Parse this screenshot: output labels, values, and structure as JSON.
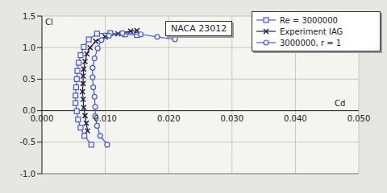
{
  "chart_data": {
    "type": "line",
    "title": "NACA 23012",
    "x_label": "Cd",
    "y_label": "Cl",
    "xlim": [
      0,
      0.05
    ],
    "ylim": [
      -1,
      1.5
    ],
    "xticks": [
      {
        "value": 0,
        "label": "0.000"
      },
      {
        "value": 0.01,
        "label": "0.010"
      },
      {
        "value": 0.02,
        "label": "0.020"
      },
      {
        "value": 0.03,
        "label": "0.030"
      },
      {
        "value": 0.04,
        "label": "0.040"
      },
      {
        "value": 0.05,
        "label": "0.050"
      }
    ],
    "yticks": [
      {
        "value": -1,
        "label": "-1.0"
      },
      -0.5,
      {
        "value": 0,
        "label": "0.0"
      },
      0.5,
      {
        "value": 1,
        "label": "1.0"
      },
      1.5
    ],
    "grid": true,
    "legend": "top-right",
    "series": [
      {
        "name": "Re = 3000000",
        "color": "#4a5ac8",
        "marker": "square",
        "line_style": "solid",
        "x": [
          0.0078,
          0.0067,
          0.0061,
          0.0057,
          0.0055,
          0.0053,
          0.0053,
          0.0054,
          0.0055,
          0.0056,
          0.0058,
          0.0061,
          0.0066,
          0.0074,
          0.0087,
          0.0108,
          0.0131,
          0.015
        ],
        "values": [
          -0.54,
          -0.4,
          -0.27,
          -0.14,
          -0.01,
          0.12,
          0.24,
          0.37,
          0.5,
          0.63,
          0.76,
          0.88,
          1.01,
          1.13,
          1.22,
          1.23,
          1.21,
          1.2
        ]
      },
      {
        "name": "Experiment IAG",
        "color": "#202040",
        "marker": "x",
        "line_style": "solid",
        "x": [
          0.0072,
          0.007,
          0.0068,
          0.0066,
          0.0065,
          0.0064,
          0.0065,
          0.0065,
          0.0066,
          0.0068,
          0.0071,
          0.0076,
          0.0085,
          0.01,
          0.012,
          0.014,
          0.015
        ],
        "values": [
          -0.32,
          -0.2,
          -0.08,
          0.05,
          0.18,
          0.3,
          0.43,
          0.55,
          0.66,
          0.78,
          0.9,
          1.0,
          1.1,
          1.17,
          1.22,
          1.26,
          1.27
        ]
      },
      {
        "name": "3000000, r = 1",
        "color": "#4a5ac8",
        "marker": "circle",
        "line_style": "solid",
        "x": [
          0.0103,
          0.0092,
          0.0087,
          0.0084,
          0.0084,
          0.0083,
          0.0081,
          0.008,
          0.008,
          0.0083,
          0.0088,
          0.0094,
          0.0106,
          0.0127,
          0.0156,
          0.0182,
          0.021
        ],
        "values": [
          -0.54,
          -0.4,
          -0.24,
          -0.09,
          0.06,
          0.22,
          0.37,
          0.53,
          0.68,
          0.83,
          0.99,
          1.12,
          1.19,
          1.23,
          1.21,
          1.17,
          1.13
        ]
      }
    ]
  }
}
